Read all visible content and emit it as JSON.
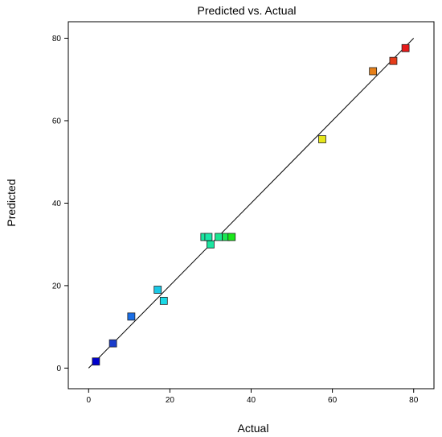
{
  "chart_data": {
    "type": "scatter",
    "title": "Predicted vs. Actual",
    "xlabel": "Actual",
    "ylabel": "Predicted",
    "xlim": [
      -5,
      85
    ],
    "ylim": [
      -5,
      84
    ],
    "xticks": [
      0,
      20,
      40,
      60,
      80
    ],
    "yticks": [
      0,
      20,
      40,
      60,
      80
    ],
    "x_tick_labels": [
      "0",
      "20",
      "40",
      "60",
      "80"
    ],
    "y_tick_labels": [
      "0",
      "20",
      "40",
      "60",
      "80"
    ],
    "grid": false,
    "legend": "none",
    "reference_line": {
      "from": [
        0,
        0
      ],
      "to": [
        80,
        80
      ],
      "color": "#000000"
    },
    "points": [
      {
        "x": 1.8,
        "y": 1.6,
        "color": "#0000cc"
      },
      {
        "x": 6.0,
        "y": 6.0,
        "color": "#1a3dcc"
      },
      {
        "x": 10.5,
        "y": 12.5,
        "color": "#1a6ee6"
      },
      {
        "x": 17.0,
        "y": 19.0,
        "color": "#1ac8e6"
      },
      {
        "x": 18.5,
        "y": 16.3,
        "color": "#1ad9e6"
      },
      {
        "x": 28.5,
        "y": 31.8,
        "color": "#1ae6a0"
      },
      {
        "x": 29.5,
        "y": 31.8,
        "color": "#1ae6a8"
      },
      {
        "x": 30.0,
        "y": 30.0,
        "color": "#1ae6a0"
      },
      {
        "x": 32.0,
        "y": 31.8,
        "color": "#1ae690"
      },
      {
        "x": 33.8,
        "y": 31.8,
        "color": "#1ae650"
      },
      {
        "x": 35.2,
        "y": 31.8,
        "color": "#1ae61a"
      },
      {
        "x": 57.5,
        "y": 55.5,
        "color": "#e6e61a"
      },
      {
        "x": 70.0,
        "y": 72.0,
        "color": "#e6801a"
      },
      {
        "x": 75.0,
        "y": 74.5,
        "color": "#e63c1a"
      },
      {
        "x": 78.0,
        "y": 77.6,
        "color": "#e61a1a"
      }
    ]
  }
}
